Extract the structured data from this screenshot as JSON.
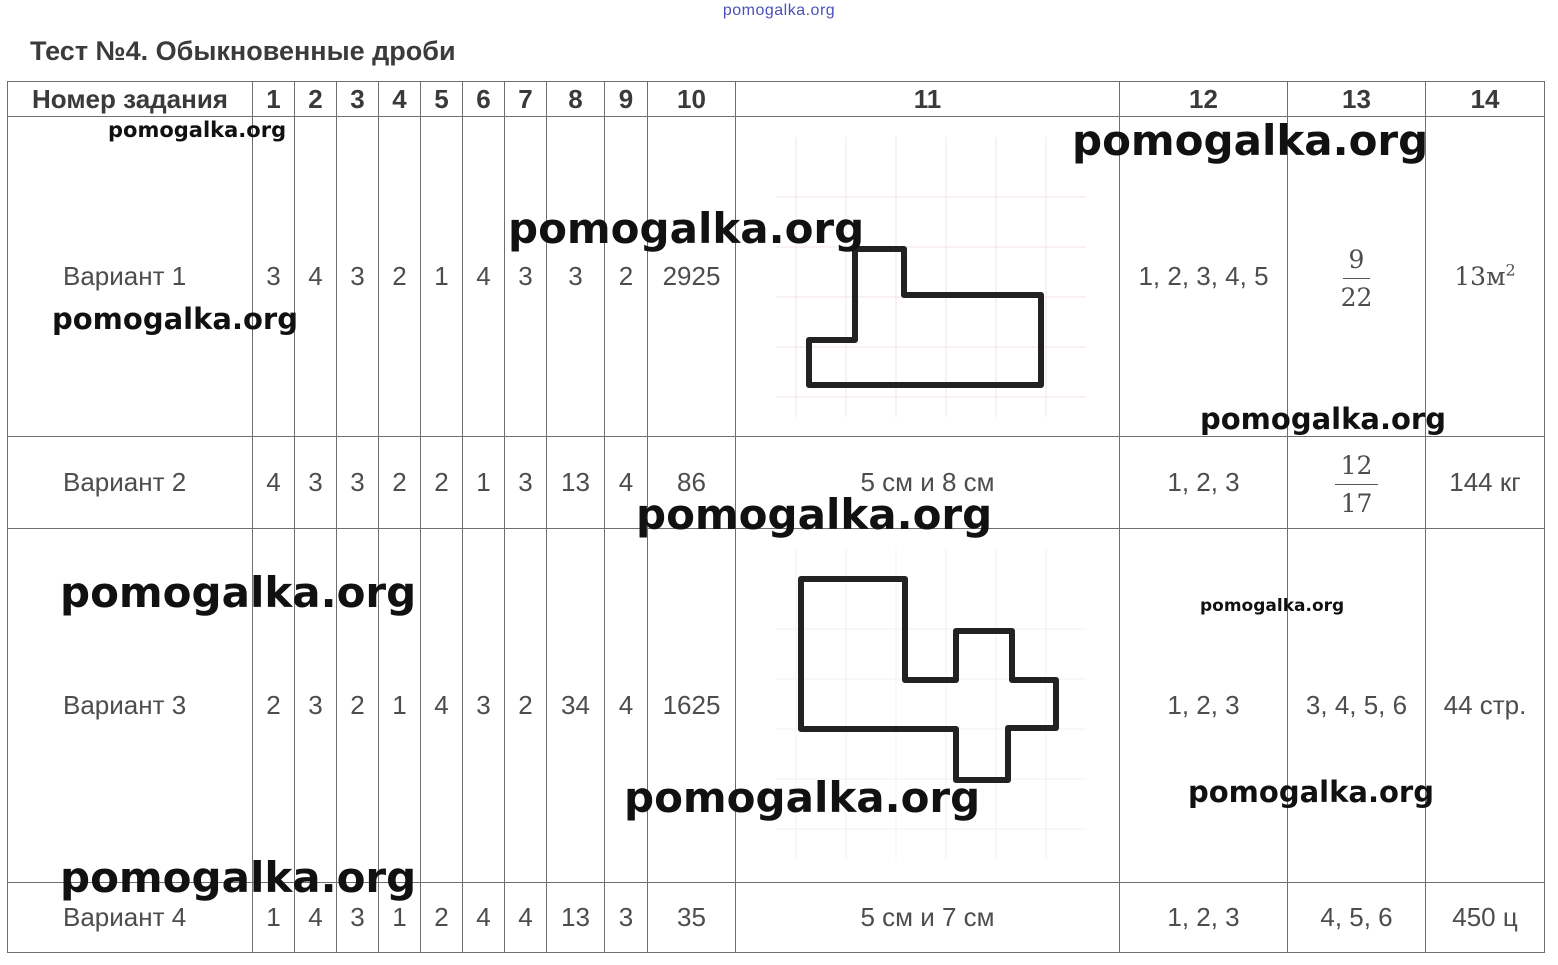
{
  "site_top": "pomogalka.org",
  "title": "Тест №4. Обыкновенные дроби",
  "header": {
    "task_label": "Номер задания",
    "columns": [
      "1",
      "2",
      "3",
      "4",
      "5",
      "6",
      "7",
      "8",
      "9",
      "10",
      "11",
      "12",
      "13",
      "14"
    ]
  },
  "rows": [
    {
      "label": "Вариант 1",
      "answers": [
        "3",
        "4",
        "3",
        "2",
        "1",
        "4",
        "3",
        "3",
        "2",
        "2925"
      ],
      "col11_shape": "l-shape-figure",
      "col12": "1, 2, 3, 4, 5",
      "col13_fraction": {
        "num": "9",
        "den": "22"
      },
      "col14_value": "13м",
      "col14_exp": "2"
    },
    {
      "label": "Вариант 2",
      "answers": [
        "4",
        "3",
        "3",
        "2",
        "2",
        "1",
        "3",
        "13",
        "4",
        "86"
      ],
      "col11": "5 см и 8 см",
      "col12": "1, 2, 3",
      "col13_fraction": {
        "num": "12",
        "den": "17"
      },
      "col14": "144 кг"
    },
    {
      "label": "Вариант 3",
      "answers": [
        "2",
        "3",
        "2",
        "1",
        "4",
        "3",
        "2",
        "34",
        "4",
        "1625"
      ],
      "col11_shape": "cross-shape-figure",
      "col12": "1, 2, 3",
      "col13": "3, 4, 5, 6",
      "col14": "44 стр."
    },
    {
      "label": "Вариант 4",
      "answers": [
        "1",
        "4",
        "3",
        "1",
        "2",
        "4",
        "4",
        "13",
        "3",
        "35"
      ],
      "col11": "5 см и 7 см",
      "col12": "1, 2, 3",
      "col13": "4, 5, 6",
      "col14": "450 ц"
    }
  ],
  "watermark": "pomogalka.org",
  "colors": {
    "text": "#4d4d4d",
    "border": "#6f6f6f",
    "watermark": "#111111",
    "site_top": "#4a52b8"
  }
}
